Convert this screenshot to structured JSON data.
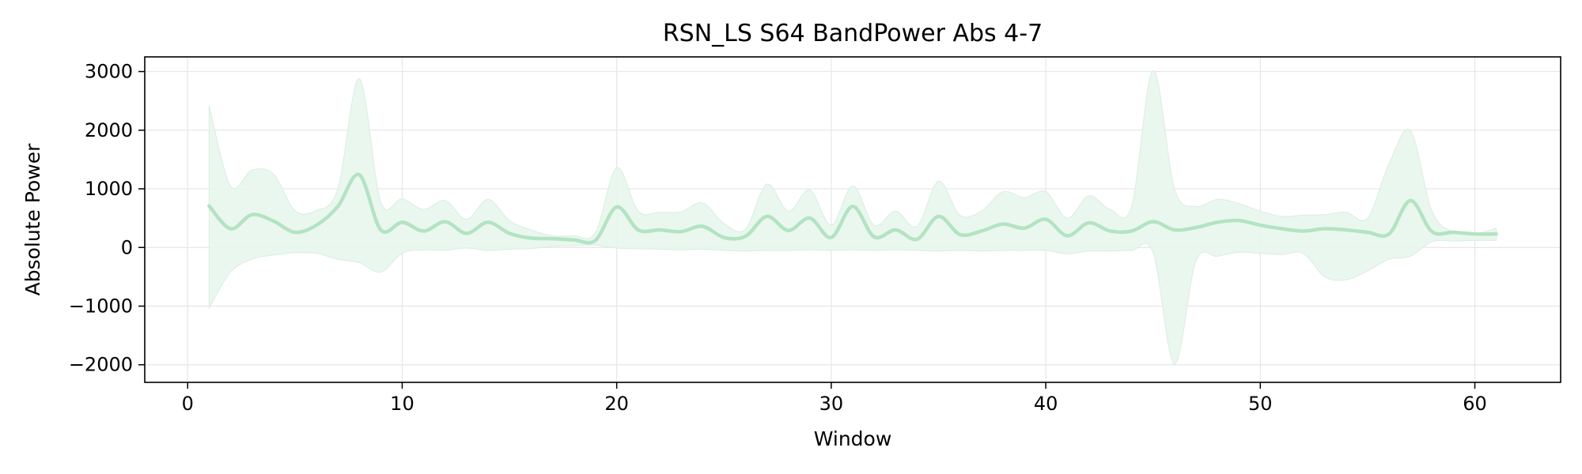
{
  "chart_data": {
    "type": "line",
    "title": "RSN_LS S64 BandPower Abs 4-7",
    "xlabel": "Window",
    "ylabel": "Absolute Power",
    "xlim": [
      -2,
      64
    ],
    "ylim": [
      -2300,
      3250
    ],
    "x_ticks": [
      0,
      10,
      20,
      30,
      40,
      50,
      60
    ],
    "x_tick_labels": [
      "0",
      "10",
      "20",
      "30",
      "40",
      "50",
      "60"
    ],
    "y_ticks": [
      -2000,
      -1000,
      0,
      1000,
      2000,
      3000
    ],
    "y_tick_labels": [
      "−2000",
      "−1000",
      "0",
      "1000",
      "2000",
      "3000"
    ],
    "grid": true,
    "colors": {
      "line": "#b3e3c3",
      "band": "#e8f6ec",
      "grid": "#e6e6e6",
      "axes": "#000000"
    },
    "series": [
      {
        "x": [
          1,
          2,
          3,
          4,
          5,
          6,
          7,
          8,
          9,
          10,
          11,
          12,
          13,
          14,
          15,
          16,
          17,
          18,
          19,
          20,
          21,
          22,
          23,
          24,
          25,
          26,
          27,
          28,
          29,
          30,
          31,
          32,
          33,
          34,
          35,
          36,
          37,
          38,
          39,
          40,
          41,
          42,
          43,
          44,
          45,
          46,
          47,
          48,
          49,
          50,
          51,
          52,
          53,
          54,
          55,
          56,
          57,
          58,
          59,
          60,
          61
        ],
        "values": [
          710,
          320,
          560,
          450,
          260,
          380,
          700,
          1240,
          300,
          430,
          280,
          440,
          240,
          430,
          240,
          160,
          150,
          130,
          120,
          690,
          300,
          300,
          270,
          360,
          170,
          190,
          530,
          290,
          500,
          170,
          700,
          180,
          300,
          140,
          530,
          220,
          280,
          400,
          330,
          480,
          200,
          420,
          280,
          280,
          440,
          300,
          340,
          430,
          460,
          380,
          320,
          280,
          320,
          300,
          260,
          230,
          800,
          270,
          260,
          230,
          230
        ],
        "upper": [
          2420,
          1050,
          1320,
          1250,
          630,
          630,
          1000,
          2880,
          780,
          830,
          650,
          800,
          480,
          820,
          460,
          300,
          200,
          200,
          250,
          1360,
          620,
          600,
          610,
          760,
          410,
          310,
          1080,
          620,
          980,
          380,
          1050,
          380,
          620,
          360,
          1130,
          550,
          620,
          950,
          850,
          950,
          500,
          880,
          650,
          700,
          3020,
          1000,
          700,
          820,
          750,
          620,
          530,
          550,
          560,
          600,
          500,
          1430,
          1990,
          620,
          260,
          230,
          330
        ],
        "lower": [
          -1030,
          -420,
          -200,
          -130,
          -90,
          -100,
          -200,
          -260,
          -420,
          -100,
          -40,
          -50,
          -10,
          -50,
          -30,
          -20,
          20,
          30,
          40,
          -10,
          -20,
          -30,
          -40,
          -30,
          -50,
          -60,
          -50,
          -50,
          -40,
          -50,
          -40,
          -50,
          -40,
          -50,
          -60,
          -50,
          -60,
          -50,
          -50,
          -50,
          -110,
          -60,
          -60,
          -50,
          -80,
          -1990,
          -230,
          -150,
          -80,
          -100,
          -120,
          -100,
          -500,
          -550,
          -400,
          -200,
          -150,
          100,
          110,
          120,
          120
        ]
      }
    ]
  }
}
